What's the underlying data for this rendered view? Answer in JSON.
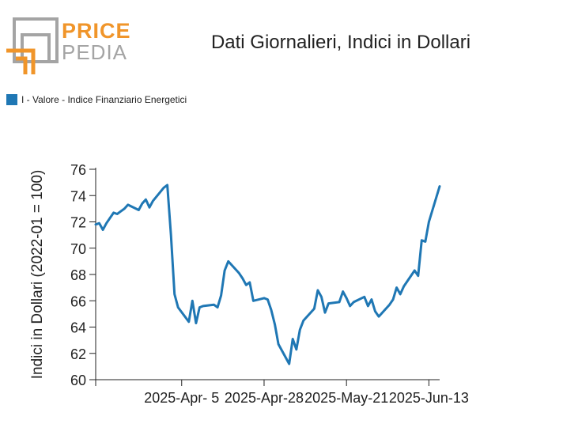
{
  "logo": {
    "word1": "PRICE",
    "word2": "PEDIA"
  },
  "chart_data": {
    "type": "line",
    "title": "Dati Giornalieri, Indici in Dollari",
    "ylabel": "Indici in Dollari (2022-01 = 100)",
    "xlabel": "",
    "legend_position": "top-left",
    "grid": false,
    "ylim": [
      60,
      76
    ],
    "xlim": [
      "2025-03-12",
      "2025-06-16"
    ],
    "x_ticks": [
      "2025-Apr- 5",
      "2025-Apr-28",
      "2025-May-21",
      "2025-Jun-13"
    ],
    "x_tick_dates": [
      "2025-04-05",
      "2025-04-28",
      "2025-05-21",
      "2025-06-13"
    ],
    "y_ticks": [
      60,
      62,
      64,
      66,
      68,
      70,
      72,
      74,
      76
    ],
    "series": [
      {
        "name": "I - Valore - Indice Finanziario Energetici",
        "color": "#1f77b4",
        "x": [
          "2025-03-12",
          "2025-03-13",
          "2025-03-14",
          "2025-03-15",
          "2025-03-17",
          "2025-03-18",
          "2025-03-19",
          "2025-03-20",
          "2025-03-21",
          "2025-03-24",
          "2025-03-25",
          "2025-03-26",
          "2025-03-27",
          "2025-03-28",
          "2025-03-31",
          "2025-04-01",
          "2025-04-02",
          "2025-04-03",
          "2025-04-04",
          "2025-04-07",
          "2025-04-08",
          "2025-04-09",
          "2025-04-10",
          "2025-04-11",
          "2025-04-14",
          "2025-04-15",
          "2025-04-16",
          "2025-04-17",
          "2025-04-18",
          "2025-04-21",
          "2025-04-22",
          "2025-04-23",
          "2025-04-24",
          "2025-04-25",
          "2025-04-28",
          "2025-04-29",
          "2025-04-30",
          "2025-05-01",
          "2025-05-02",
          "2025-05-05",
          "2025-05-06",
          "2025-05-07",
          "2025-05-08",
          "2025-05-09",
          "2025-05-12",
          "2025-05-13",
          "2025-05-14",
          "2025-05-15",
          "2025-05-16",
          "2025-05-19",
          "2025-05-20",
          "2025-05-21",
          "2025-05-22",
          "2025-05-23",
          "2025-05-26",
          "2025-05-27",
          "2025-05-28",
          "2025-05-29",
          "2025-05-30",
          "2025-06-02",
          "2025-06-03",
          "2025-06-04",
          "2025-06-05",
          "2025-06-06",
          "2025-06-09",
          "2025-06-10",
          "2025-06-11",
          "2025-06-12",
          "2025-06-13",
          "2025-06-16"
        ],
        "values": [
          71.8,
          71.9,
          71.4,
          71.9,
          72.7,
          72.6,
          72.8,
          73.0,
          73.3,
          72.9,
          73.4,
          73.7,
          73.1,
          73.6,
          74.6,
          74.8,
          71.0,
          66.5,
          65.5,
          64.4,
          66.0,
          64.3,
          65.5,
          65.6,
          65.7,
          65.5,
          66.4,
          68.3,
          69.0,
          68.1,
          67.7,
          67.2,
          67.4,
          66.0,
          66.2,
          66.1,
          65.3,
          64.2,
          62.7,
          61.2,
          63.1,
          62.3,
          63.8,
          64.5,
          65.4,
          66.8,
          66.3,
          65.1,
          65.8,
          65.9,
          66.7,
          66.2,
          65.6,
          65.9,
          66.3,
          65.6,
          66.1,
          65.2,
          64.8,
          65.7,
          66.1,
          67.0,
          66.5,
          67.1,
          68.3,
          67.9,
          70.6,
          70.5,
          72.0,
          74.7
        ]
      }
    ]
  }
}
